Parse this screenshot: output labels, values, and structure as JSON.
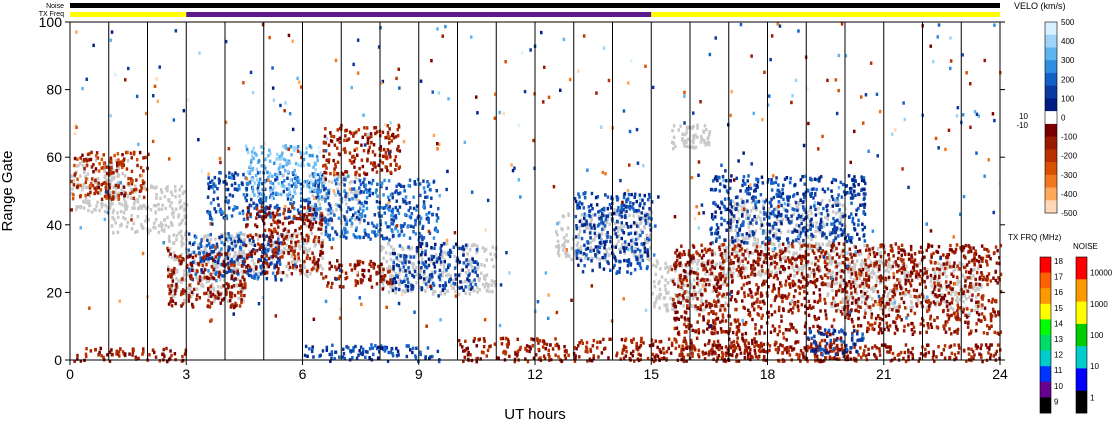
{
  "chart_data": {
    "type": "heatmap",
    "xlabel": "UT hours",
    "ylabel": "Range Gate",
    "xlim": [
      0,
      24
    ],
    "ylim": [
      0,
      100
    ],
    "x_ticks": [
      "0",
      "3",
      "6",
      "9",
      "12",
      "15",
      "18",
      "21",
      "24"
    ],
    "y_ticks": [
      "0",
      "20",
      "40",
      "60",
      "80",
      "100"
    ],
    "scan_boundaries_hours": [
      1,
      2,
      3,
      4,
      5,
      6,
      7,
      8,
      9,
      10,
      11,
      12,
      13,
      14,
      15,
      16,
      17,
      18,
      19,
      20,
      21,
      22,
      23
    ],
    "status_bars": {
      "noise_label": "Noise",
      "txfreq_label": "TX Freq",
      "noise_color": "#000000",
      "txfreq_segments": [
        {
          "start": 0,
          "end": 3,
          "color": "#ffff00"
        },
        {
          "start": 3,
          "end": 15,
          "color": "#5a1a8a"
        },
        {
          "start": 15,
          "end": 24,
          "color": "#ffff00"
        }
      ]
    },
    "ground_scatter_color": "#c8c8c8",
    "regions": [
      {
        "kind": "ground",
        "t0": 0.0,
        "t1": 1.5,
        "g0": 44,
        "g1": 60
      },
      {
        "kind": "ground",
        "t0": 1.0,
        "t1": 3.0,
        "g0": 38,
        "g1": 52
      },
      {
        "kind": "ground",
        "t0": 2.5,
        "t1": 4.5,
        "g0": 17,
        "g1": 38
      },
      {
        "kind": "ground",
        "t0": 4.0,
        "t1": 6.5,
        "g0": 25,
        "g1": 38
      },
      {
        "kind": "ground",
        "t0": 6.0,
        "t1": 7.5,
        "g0": 40,
        "g1": 55
      },
      {
        "kind": "ground",
        "t0": 8.0,
        "t1": 11.0,
        "g0": 20,
        "g1": 35
      },
      {
        "kind": "ground",
        "t0": 12.5,
        "t1": 15.0,
        "g0": 30,
        "g1": 45
      },
      {
        "kind": "ground",
        "t0": 15.0,
        "t1": 17.0,
        "g0": 15,
        "g1": 30
      },
      {
        "kind": "ground",
        "t0": 16.5,
        "t1": 21.0,
        "g0": 25,
        "g1": 35
      },
      {
        "kind": "ground",
        "t0": 17.0,
        "t1": 20.0,
        "g0": 34,
        "g1": 48
      },
      {
        "kind": "ground",
        "t0": 19.5,
        "t1": 23.5,
        "g0": 15,
        "g1": 30
      },
      {
        "kind": "ground",
        "t0": 15.5,
        "t1": 16.5,
        "g0": 63,
        "g1": 70
      },
      {
        "kind": "vel",
        "t0": 0.0,
        "t1": 2.0,
        "g0": 48,
        "g1": 62,
        "v": -150
      },
      {
        "kind": "vel",
        "t0": 3.5,
        "t1": 6.5,
        "g0": 42,
        "g1": 56,
        "v": 150
      },
      {
        "kind": "vel",
        "t0": 4.5,
        "t1": 6.5,
        "g0": 48,
        "g1": 64,
        "v": 350
      },
      {
        "kind": "vel",
        "t0": 3.0,
        "t1": 5.5,
        "g0": 24,
        "g1": 38,
        "v": 150
      },
      {
        "kind": "vel",
        "t0": 2.5,
        "t1": 4.5,
        "g0": 16,
        "g1": 32,
        "v": -100
      },
      {
        "kind": "vel",
        "t0": 4.5,
        "t1": 6.5,
        "g0": 26,
        "g1": 46,
        "v": -100
      },
      {
        "kind": "vel",
        "t0": 6.5,
        "t1": 9.5,
        "g0": 36,
        "g1": 54,
        "v": 180
      },
      {
        "kind": "vel",
        "t0": 6.5,
        "t1": 8.3,
        "g0": 22,
        "g1": 30,
        "v": -100
      },
      {
        "kind": "vel",
        "t0": 8.3,
        "t1": 10.5,
        "g0": 21,
        "g1": 35,
        "v": 120
      },
      {
        "kind": "vel",
        "t0": 6.5,
        "t1": 8.5,
        "g0": 55,
        "g1": 70,
        "v": -120
      },
      {
        "kind": "vel",
        "t0": 13.0,
        "t1": 15.0,
        "g0": 26,
        "g1": 50,
        "v": 120
      },
      {
        "kind": "vel",
        "t0": 16.5,
        "t1": 20.5,
        "g0": 35,
        "g1": 55,
        "v": 120
      },
      {
        "kind": "vel",
        "t0": 15.5,
        "t1": 24.0,
        "g0": 8,
        "g1": 35,
        "v": -100
      },
      {
        "kind": "vel",
        "t0": 0.0,
        "t1": 3.0,
        "g0": 0,
        "g1": 4,
        "v": -120
      },
      {
        "kind": "vel",
        "t0": 6.0,
        "t1": 9.5,
        "g0": 0,
        "g1": 5,
        "v": 120
      },
      {
        "kind": "vel",
        "t0": 10.0,
        "t1": 20.0,
        "g0": 0,
        "g1": 7,
        "v": -120
      },
      {
        "kind": "vel",
        "t0": 15.0,
        "t1": 24.0,
        "g0": 0,
        "g1": 5,
        "v": -100
      },
      {
        "kind": "vel",
        "t0": 19.0,
        "t1": 20.5,
        "g0": 2,
        "g1": 10,
        "v": 120
      },
      {
        "kind": "vel",
        "t0": 0.0,
        "t1": 24.0,
        "g0": 10,
        "g1": 100,
        "v": 0,
        "sparse": true
      }
    ]
  },
  "colorbars": {
    "velocity": {
      "title": "VELO (km/s)",
      "labels": [
        "500",
        "400",
        "300",
        "200",
        "100",
        "0",
        "-100",
        "-200",
        "-300",
        "-400",
        "-500"
      ],
      "side_labels": [
        "10",
        "-10"
      ],
      "colors": [
        "#d8f0ff",
        "#9fd4f8",
        "#5eb4f0",
        "#2f8ee0",
        "#1560c8",
        "#0a3aa0",
        "#001c80",
        "#ffffff",
        "#7a0000",
        "#9a1a00",
        "#b83000",
        "#d85000",
        "#f07820",
        "#ffa85a",
        "#ffd8b8"
      ]
    },
    "txfreq": {
      "title": "TX FRQ (MHz)",
      "labels": [
        "18",
        "17",
        "16",
        "15",
        "14",
        "13",
        "12",
        "11",
        "10",
        "9"
      ],
      "colors": [
        "#ff0000",
        "#ff6000",
        "#ff9900",
        "#ffff00",
        "#00ff00",
        "#00dd66",
        "#00cccc",
        "#0033ff",
        "#6a0090",
        "#000000"
      ]
    },
    "noise": {
      "title": "NOISE",
      "labels": [
        "10000",
        "1000",
        "100",
        "10",
        "1"
      ],
      "colors": [
        "#ff0000",
        "#ff9900",
        "#ffff00",
        "#00cc00",
        "#00cccc",
        "#0000ff",
        "#000000"
      ]
    }
  }
}
